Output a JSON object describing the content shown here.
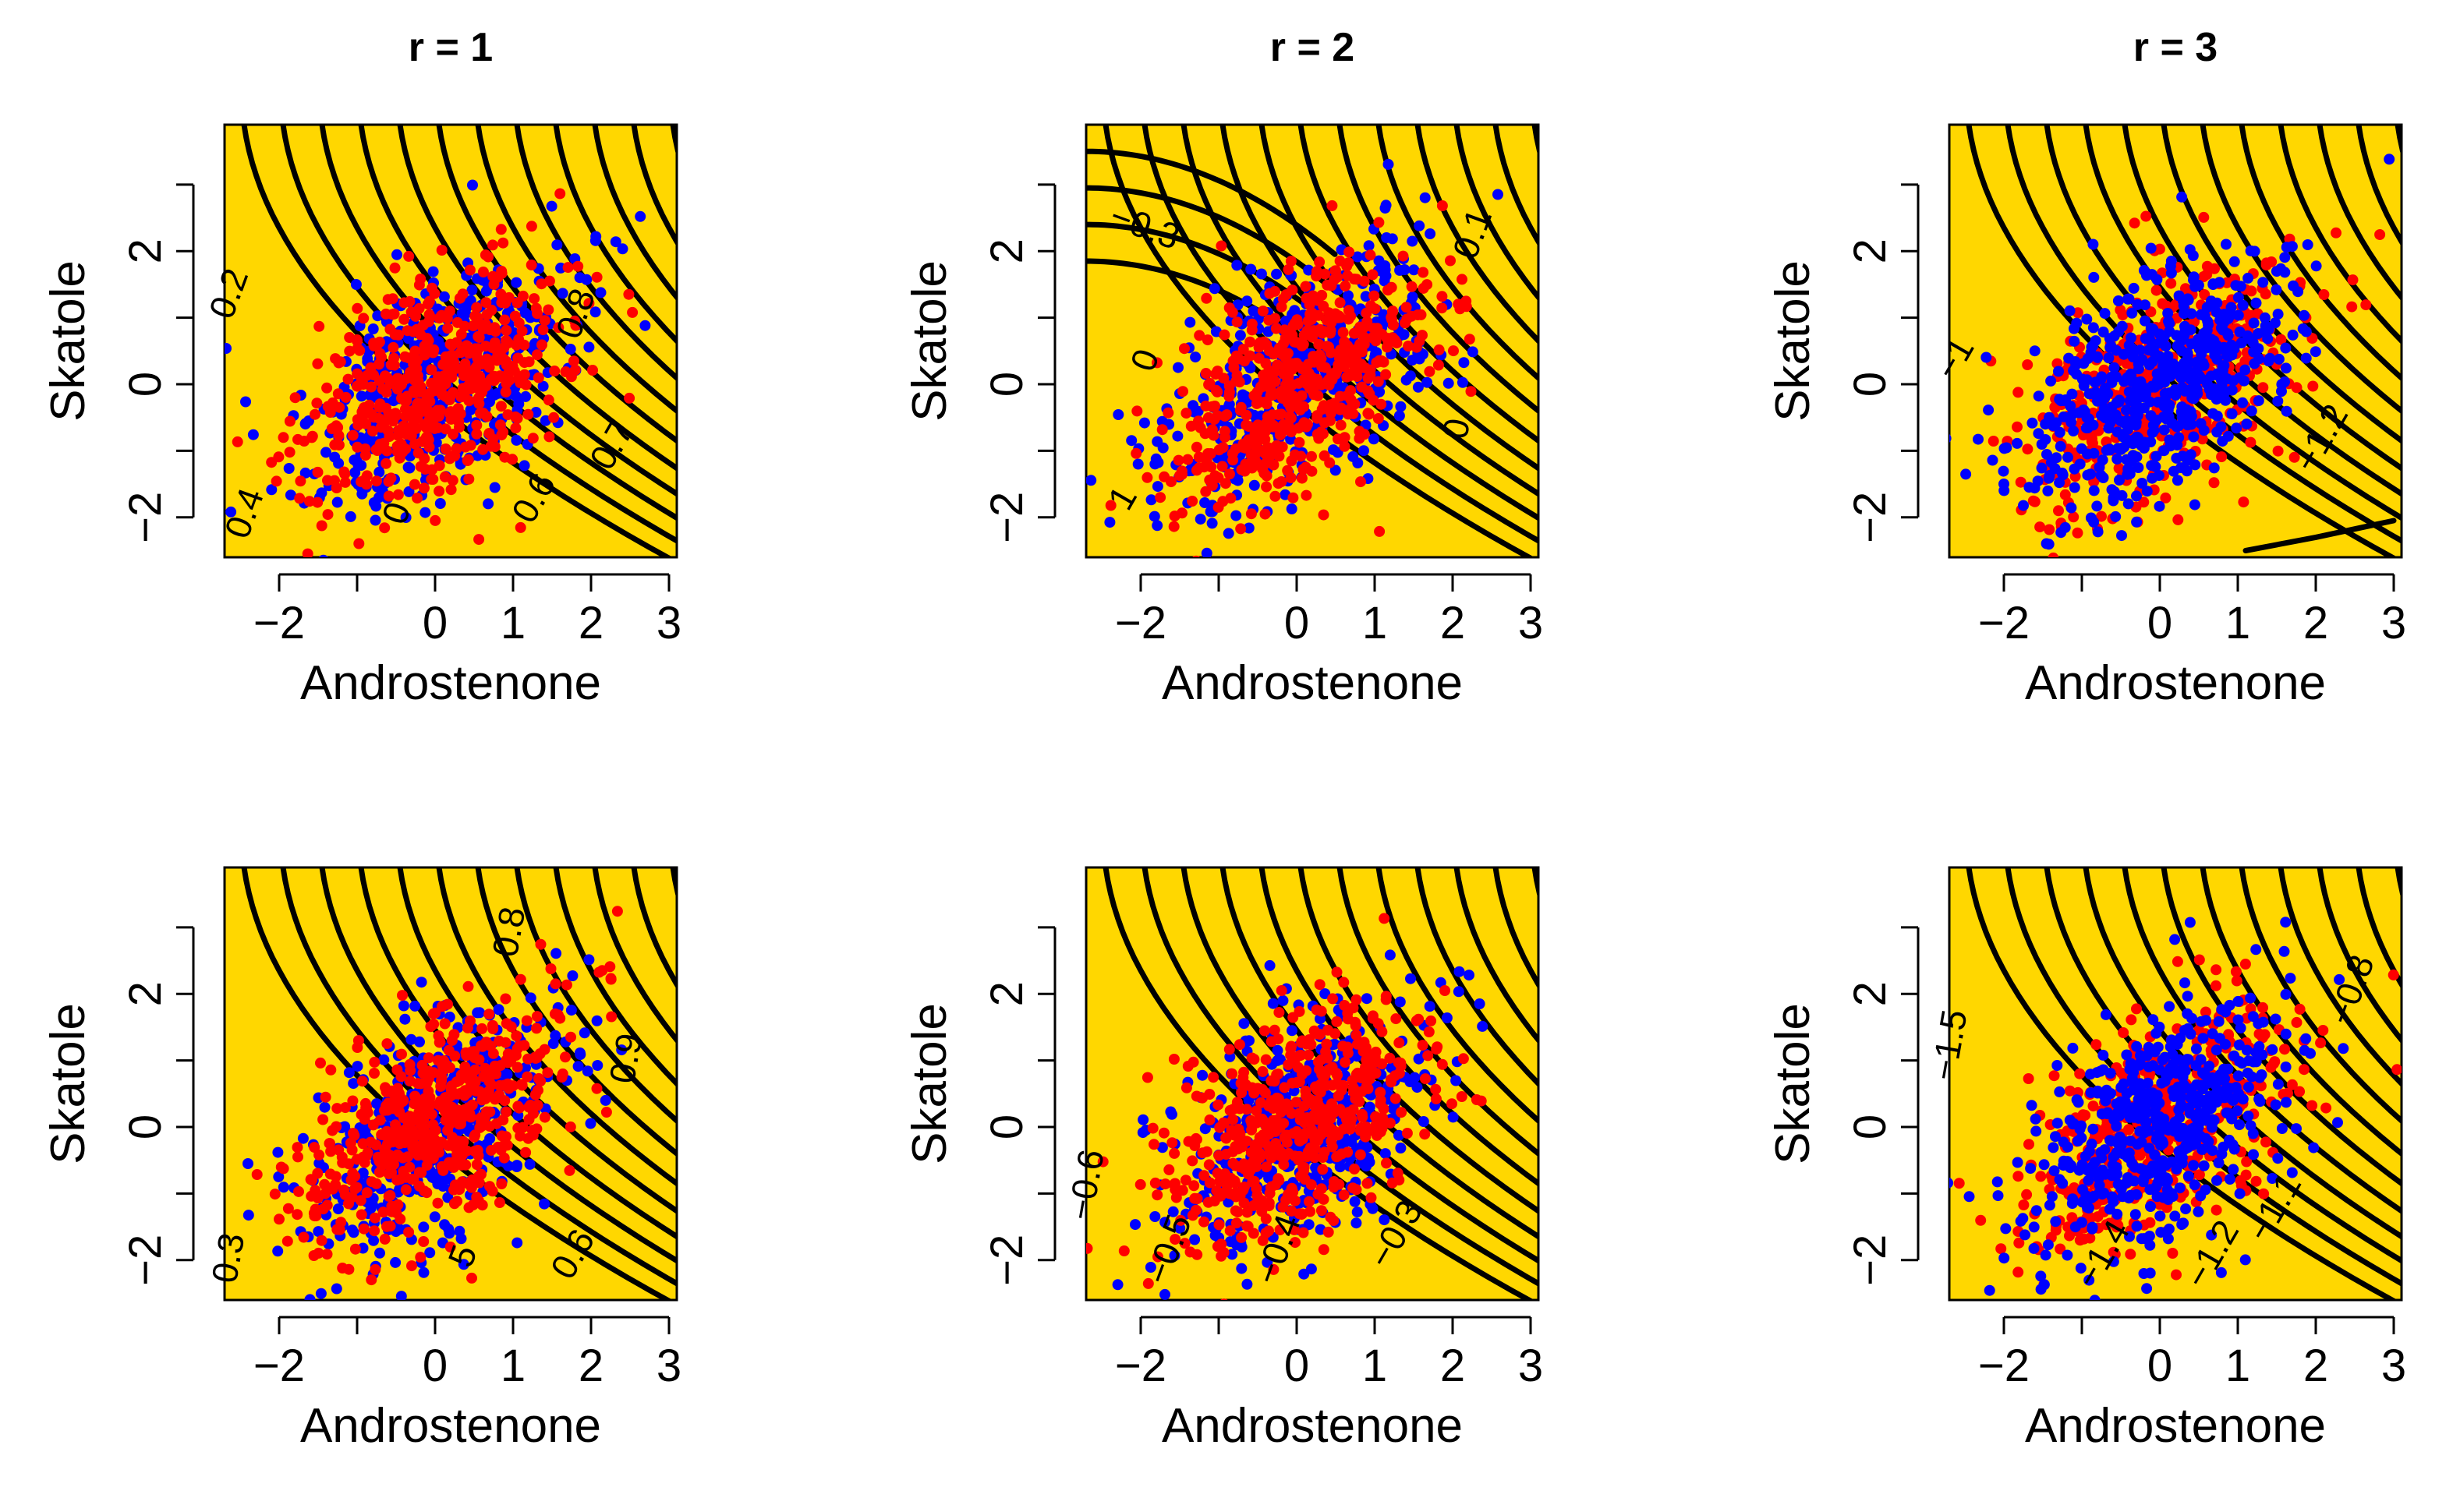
{
  "figure": {
    "colors": {
      "background": "#FFD700",
      "group_a": "#FF0000",
      "group_b": "#0000FF",
      "contour": "#000000"
    }
  },
  "chart_data": [
    {
      "type": "scatter",
      "row": 1,
      "col": 1,
      "title": "r = 1",
      "xlabel": "Androstenone",
      "ylabel": "Skatole",
      "xlim": [
        -2.7,
        3.1
      ],
      "ylim": [
        -2.6,
        3.9
      ],
      "xticks": [
        -2,
        -1,
        0,
        1,
        2,
        3
      ],
      "xtick_labels": [
        "−2",
        "",
        "0",
        "1",
        "2",
        "3"
      ],
      "yticks": [
        -2,
        -1,
        0,
        1,
        2,
        3
      ],
      "ytick_labels": [
        "−2",
        "",
        "0",
        "",
        "2",
        ""
      ],
      "contour_family": "decreasing",
      "contour_labels": [
        {
          "text": "0.2",
          "x": -2.5,
          "y": 1.3,
          "rot": -70
        },
        {
          "text": "0.8",
          "x": 1.95,
          "y": 1.0,
          "rot": -70
        },
        {
          "text": "0.7",
          "x": 2.4,
          "y": -1.0,
          "rot": -60
        },
        {
          "text": "0.6",
          "x": 1.4,
          "y": -1.8,
          "rot": -60
        },
        {
          "text": "0.4",
          "x": -2.3,
          "y": -2.0,
          "rot": -70
        },
        {
          "text": "0",
          "x": -0.35,
          "y": -2.0,
          "rot": -70
        }
      ],
      "series": [
        {
          "name": "red",
          "color": "#FF0000",
          "dominant": true
        },
        {
          "name": "blue",
          "color": "#0000FF",
          "dominant": false
        }
      ]
    },
    {
      "type": "scatter",
      "row": 1,
      "col": 2,
      "title": "r = 2",
      "xlabel": "Androstenone",
      "ylabel": "Skatole",
      "xlim": [
        -2.7,
        3.1
      ],
      "ylim": [
        -2.6,
        3.9
      ],
      "xticks": [
        -2,
        -1,
        0,
        1,
        2,
        3
      ],
      "xtick_labels": [
        "−2",
        "",
        "0",
        "1",
        "2",
        "3"
      ],
      "yticks": [
        -2,
        -1,
        0,
        1,
        2,
        3
      ],
      "ytick_labels": [
        "−2",
        "",
        "0",
        "",
        "2",
        ""
      ],
      "contour_family": "mixed",
      "contour_labels": [
        {
          "text": "−0.3",
          "x": -2.0,
          "y": 2.2,
          "rot": 20
        },
        {
          "text": "0",
          "x": -1.8,
          "y": 0.3,
          "rot": -70
        },
        {
          "text": "0.1",
          "x": 2.4,
          "y": 2.2,
          "rot": -70
        },
        {
          "text": "0",
          "x": 2.2,
          "y": -0.7,
          "rot": -80
        },
        {
          "text": "1",
          "x": -2.1,
          "y": -1.8,
          "rot": -60
        }
      ],
      "series": [
        {
          "name": "red",
          "color": "#FF0000",
          "dominant": true
        },
        {
          "name": "blue",
          "color": "#0000FF",
          "dominant": false
        }
      ]
    },
    {
      "type": "scatter",
      "row": 1,
      "col": 3,
      "title": "r = 3",
      "xlabel": "Androstenone",
      "ylabel": "Skatole",
      "xlim": [
        -2.7,
        3.1
      ],
      "ylim": [
        -2.6,
        3.9
      ],
      "xticks": [
        -2,
        -1,
        0,
        1,
        2,
        3
      ],
      "xtick_labels": [
        "−2",
        "",
        "0",
        "1",
        "2",
        "3"
      ],
      "yticks": [
        -2,
        -1,
        0,
        1,
        2,
        3
      ],
      "ytick_labels": [
        "−2",
        "",
        "0",
        "",
        "2",
        ""
      ],
      "contour_family": "decreasing",
      "contour_labels": [
        {
          "text": "−1",
          "x": -2.5,
          "y": 0.3,
          "rot": -60
        },
        {
          "text": "−1.2",
          "x": 2.2,
          "y": -0.9,
          "rot": -60
        }
      ],
      "series": [
        {
          "name": "red",
          "color": "#FF0000",
          "dominant": false
        },
        {
          "name": "blue",
          "color": "#0000FF",
          "dominant": true
        }
      ]
    },
    {
      "type": "scatter",
      "row": 2,
      "col": 1,
      "title": "",
      "xlabel": "Androstenone",
      "ylabel": "Skatole",
      "xlim": [
        -2.7,
        3.1
      ],
      "ylim": [
        -2.6,
        3.9
      ],
      "xticks": [
        -2,
        -1,
        0,
        1,
        2,
        3
      ],
      "xtick_labels": [
        "−2",
        "",
        "0",
        "1",
        "2",
        "3"
      ],
      "yticks": [
        -2,
        -1,
        0,
        1,
        2,
        3
      ],
      "ytick_labels": [
        "−2",
        "",
        "0",
        "",
        "2",
        ""
      ],
      "contour_family": "decreasing",
      "contour_labels": [
        {
          "text": "0.8",
          "x": 1.1,
          "y": 2.9,
          "rot": -80
        },
        {
          "text": "0.9",
          "x": 2.6,
          "y": 1.0,
          "rot": -80
        },
        {
          "text": "0.3",
          "x": -2.5,
          "y": -2.0,
          "rot": -80
        },
        {
          "text": "0.6",
          "x": 1.9,
          "y": -2.0,
          "rot": -60
        },
        {
          "text": "5",
          "x": 0.5,
          "y": -2.0,
          "rot": -70
        }
      ],
      "series": [
        {
          "name": "red",
          "color": "#FF0000",
          "dominant": true
        },
        {
          "name": "blue",
          "color": "#0000FF",
          "dominant": false
        }
      ]
    },
    {
      "type": "scatter",
      "row": 2,
      "col": 2,
      "title": "",
      "xlabel": "Androstenone",
      "ylabel": "Skatole",
      "xlim": [
        -2.7,
        3.1
      ],
      "ylim": [
        -2.6,
        3.9
      ],
      "xticks": [
        -2,
        -1,
        0,
        1,
        2,
        3
      ],
      "xtick_labels": [
        "−2",
        "",
        "0",
        "1",
        "2",
        "3"
      ],
      "yticks": [
        -2,
        -1,
        0,
        1,
        2,
        3
      ],
      "ytick_labels": [
        "−2",
        "",
        "0",
        "",
        "2",
        ""
      ],
      "contour_family": "decreasing",
      "contour_labels": [
        {
          "text": "−0.6",
          "x": -2.55,
          "y": -0.9,
          "rot": -80
        },
        {
          "text": "−0.5",
          "x": -1.5,
          "y": -1.9,
          "rot": -70
        },
        {
          "text": "−0.4",
          "x": -0.1,
          "y": -1.9,
          "rot": -70
        },
        {
          "text": "−0.3",
          "x": 1.4,
          "y": -1.7,
          "rot": -60
        }
      ],
      "series": [
        {
          "name": "red",
          "color": "#FF0000",
          "dominant": true
        },
        {
          "name": "blue",
          "color": "#0000FF",
          "dominant": false
        }
      ]
    },
    {
      "type": "scatter",
      "row": 2,
      "col": 3,
      "title": "",
      "xlabel": "Androstenone",
      "ylabel": "Skatole",
      "xlim": [
        -2.7,
        3.1
      ],
      "ylim": [
        -2.6,
        3.9
      ],
      "xticks": [
        -2,
        -1,
        0,
        1,
        2,
        3
      ],
      "xtick_labels": [
        "−2",
        "",
        "0",
        "1",
        "2",
        "3"
      ],
      "yticks": [
        -2,
        -1,
        0,
        1,
        2,
        3
      ],
      "ytick_labels": [
        "−2",
        "",
        "0",
        "",
        "2",
        ""
      ],
      "contour_family": "decreasing",
      "contour_labels": [
        {
          "text": "−1.5",
          "x": -2.55,
          "y": 1.2,
          "rot": -80
        },
        {
          "text": "−0.8",
          "x": 2.6,
          "y": 2.0,
          "rot": -70
        },
        {
          "text": "−1.1",
          "x": 1.6,
          "y": -1.3,
          "rot": -60
        },
        {
          "text": "−1.2",
          "x": 0.8,
          "y": -2.0,
          "rot": -60
        },
        {
          "text": "−1.4",
          "x": -0.6,
          "y": -2.0,
          "rot": -60
        }
      ],
      "series": [
        {
          "name": "red",
          "color": "#FF0000",
          "dominant": false
        },
        {
          "name": "blue",
          "color": "#0000FF",
          "dominant": true
        }
      ]
    }
  ]
}
